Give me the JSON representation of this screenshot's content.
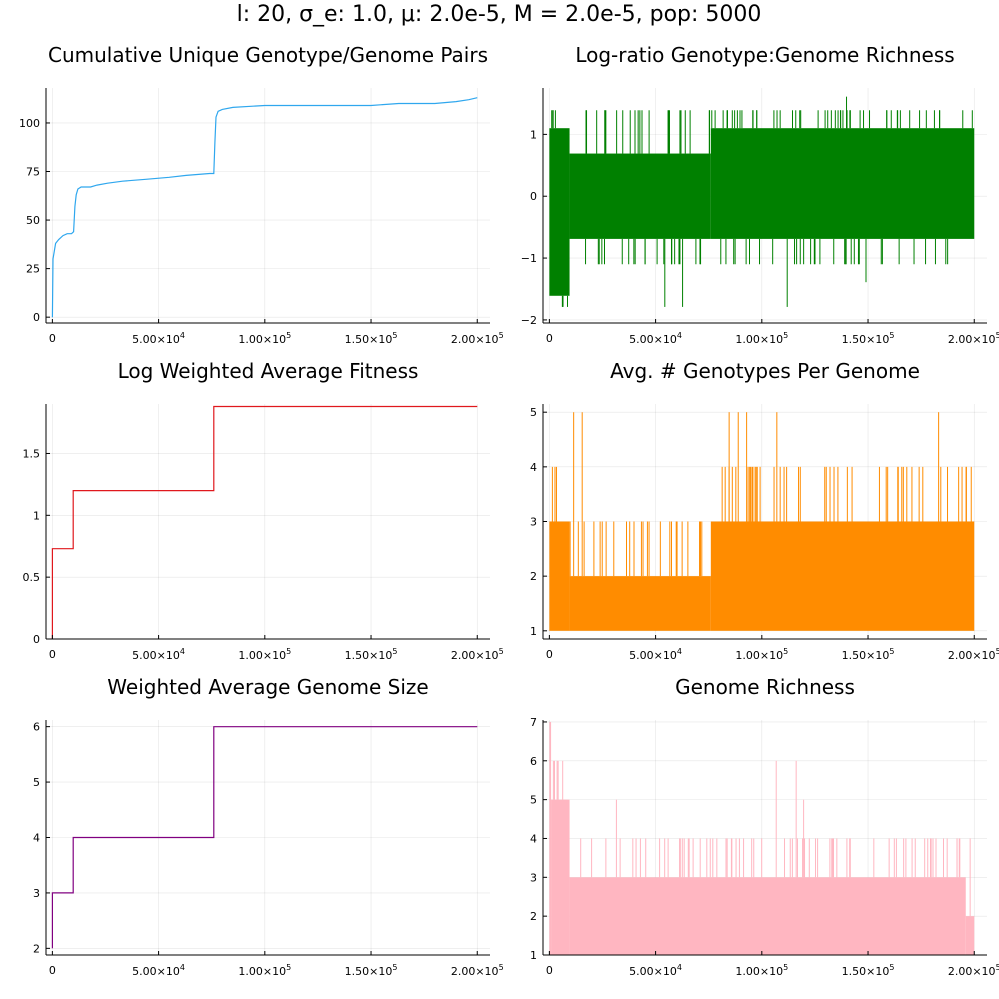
{
  "figure": {
    "suptitle": "l: 20, σ_e: 1.0, μ: 2.0e-5, M = 2.0e-5, pop: 5000"
  },
  "chart_data": [
    {
      "id": "cum_unique",
      "type": "line",
      "title": "Cumulative Unique Genotype/Genome Pairs",
      "color": "#2fa7ee",
      "xlim": [
        -3000,
        206000
      ],
      "ylim": [
        -3,
        118
      ],
      "xticks": [
        0,
        50000,
        100000,
        150000,
        200000
      ],
      "yticks": [
        0,
        25,
        50,
        75,
        100
      ],
      "series": [
        {
          "x": [
            0,
            300,
            1500,
            3000,
            5000,
            7000,
            9000,
            10000,
            10600,
            11200,
            12000,
            13500,
            18000,
            21000,
            26000,
            33000,
            44000,
            55000,
            63000,
            74000,
            76000,
            76500,
            77000,
            78000,
            80000,
            85000,
            100000,
            125000,
            150000,
            163000,
            180000,
            190000,
            196000,
            200000
          ],
          "y": [
            0,
            30,
            38,
            40,
            42,
            43,
            43,
            44,
            57,
            63,
            66,
            67,
            67,
            68,
            69,
            70,
            71,
            72,
            73,
            74,
            74,
            90,
            103,
            106,
            107,
            108,
            109,
            109,
            109,
            110,
            110,
            111,
            112,
            113
          ]
        }
      ]
    },
    {
      "id": "log_ratio",
      "type": "band",
      "title": "Log-ratio Genotype:Genome Richness",
      "color": "#008000",
      "xlim": [
        -3000,
        206000
      ],
      "ylim": [
        -2.05,
        1.75
      ],
      "xticks": [
        0,
        50000,
        100000,
        150000,
        200000
      ],
      "yticks": [
        -2,
        -1,
        0,
        1
      ],
      "segments": [
        {
          "x0": 0,
          "x1": 9500,
          "low": -1.61,
          "high": 1.1
        },
        {
          "x0": 9500,
          "x1": 76000,
          "low": -0.69,
          "high": 0.69
        },
        {
          "x0": 76000,
          "x1": 200000,
          "low": -0.69,
          "high": 1.1
        }
      ],
      "spikes_high": [
        1.39,
        1.61
      ],
      "spikes_low": [
        -1.1,
        -1.39,
        -1.79
      ]
    },
    {
      "id": "log_fitness",
      "type": "line",
      "title": "Log Weighted Average Fitness",
      "color": "#e0181d",
      "xlim": [
        -3000,
        206000
      ],
      "ylim": [
        0,
        1.9
      ],
      "xticks": [
        0,
        50000,
        100000,
        150000,
        200000
      ],
      "yticks": [
        0,
        0.5,
        1.0,
        1.5
      ],
      "series": [
        {
          "x": [
            0,
            0,
            9800,
            9800,
            76000,
            76000,
            200000
          ],
          "y": [
            0,
            0.73,
            0.73,
            1.2,
            1.2,
            1.88,
            1.88
          ]
        }
      ]
    },
    {
      "id": "genotypes_per_genome",
      "type": "band",
      "title": "Avg. # Genotypes Per Genome",
      "color": "#ff8c00",
      "xlim": [
        -3000,
        206000
      ],
      "ylim": [
        0.85,
        5.15
      ],
      "xticks": [
        0,
        50000,
        100000,
        150000,
        200000
      ],
      "yticks": [
        1,
        2,
        3,
        4,
        5
      ],
      "segments": [
        {
          "x0": 0,
          "x1": 9500,
          "low": 1,
          "high": 3
        },
        {
          "x0": 9500,
          "x1": 76000,
          "low": 1,
          "high": 2
        },
        {
          "x0": 76000,
          "x1": 200000,
          "low": 1,
          "high": 3
        }
      ],
      "spikes_high": [
        3,
        4,
        5
      ],
      "spikes_low": []
    },
    {
      "id": "genome_size",
      "type": "line",
      "title": "Weighted Average Genome Size",
      "color": "#800080",
      "xlim": [
        -3000,
        206000
      ],
      "ylim": [
        1.88,
        6.12
      ],
      "xticks": [
        0,
        50000,
        100000,
        150000,
        200000
      ],
      "yticks": [
        2,
        3,
        4,
        5,
        6
      ],
      "series": [
        {
          "x": [
            0,
            0,
            9800,
            9800,
            76000,
            76000,
            200000
          ],
          "y": [
            2,
            3,
            3,
            4,
            4,
            6,
            6
          ]
        }
      ]
    },
    {
      "id": "genome_richness",
      "type": "band",
      "title": "Genome Richness",
      "color": "#ffb6c1",
      "xlim": [
        -3000,
        206000
      ],
      "ylim": [
        1,
        7.05
      ],
      "xticks": [
        0,
        50000,
        100000,
        150000,
        200000
      ],
      "yticks": [
        1,
        2,
        3,
        4,
        5,
        6,
        7
      ],
      "segments": [
        {
          "x0": 0,
          "x1": 800,
          "low": 1,
          "high": 7
        },
        {
          "x0": 800,
          "x1": 9500,
          "low": 1,
          "high": 5
        },
        {
          "x0": 9500,
          "x1": 196000,
          "low": 1,
          "high": 3
        },
        {
          "x0": 196000,
          "x1": 200000,
          "low": 1,
          "high": 2
        }
      ],
      "spikes_high": [
        4,
        5,
        6
      ],
      "spikes_low": []
    }
  ]
}
